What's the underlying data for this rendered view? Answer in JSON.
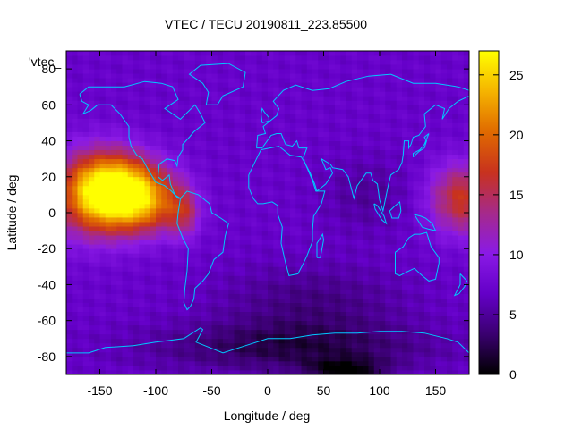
{
  "chart_data": {
    "type": "heatmap",
    "title": "VTEC / TECU 20190811_223.85500",
    "xlabel": "Longitude / deg",
    "ylabel": "Latitude / deg",
    "series_label": "'vtec_",
    "xlim": [
      -180,
      180
    ],
    "ylim": [
      -90,
      90
    ],
    "xticks": [
      -150,
      -100,
      -50,
      0,
      50,
      100,
      150
    ],
    "yticks": [
      -80,
      -60,
      -40,
      -20,
      0,
      20,
      40,
      60,
      80
    ],
    "colorbar": {
      "min": 0,
      "max": 27,
      "ticks": [
        0,
        5,
        10,
        15,
        20,
        25
      ],
      "palette": [
        "#000000",
        "#3a0070",
        "#6400c8",
        "#8a1ae6",
        "#a62a8a",
        "#c8321e",
        "#e06a00",
        "#f5b400",
        "#ffff00"
      ]
    },
    "grid_resolution": {
      "lon_step_deg": 5,
      "lat_step_deg": 2.5
    },
    "features": {
      "background_vtec": 7,
      "pacific_peak": {
        "lon": -135,
        "lat": 12,
        "vtec": 27
      },
      "pacific_secondary": {
        "lon": -105,
        "lat": 5,
        "vtec": 22
      },
      "west_pacific_peak": {
        "lon": 175,
        "lat": 8,
        "vtec": 18
      },
      "south_pole_minimum": {
        "lon": 70,
        "lat": -88,
        "vtec": 0
      }
    },
    "grid": false,
    "legend": "top-left",
    "coastline_color": "#00c8ff"
  }
}
